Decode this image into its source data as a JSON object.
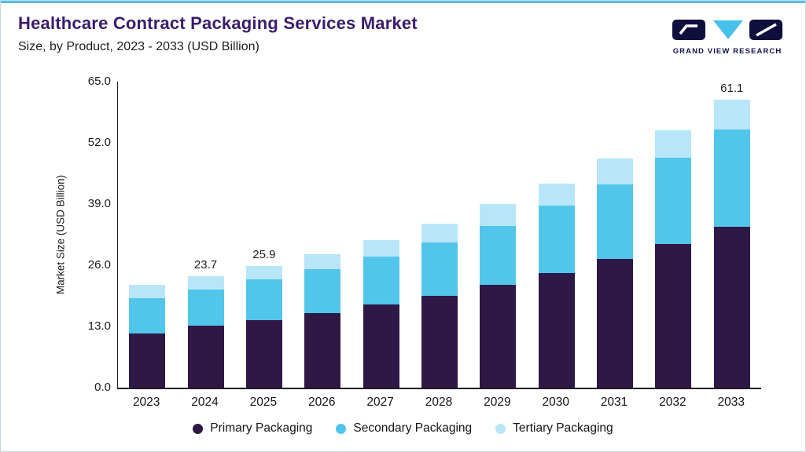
{
  "header": {
    "title": "Healthcare Contract Packaging Services Market",
    "subtitle": "Size, by Product, 2023 - 2033 (USD Billion)",
    "logo_text": "GRAND VIEW RESEARCH"
  },
  "colors": {
    "accent": "#55bfe8",
    "title": "#3a1c6b"
  },
  "chart_data": {
    "type": "bar",
    "stacked": true,
    "title": "Healthcare Contract Packaging Services Market Size, by Product, 2023 - 2033 (USD Billion)",
    "categories": [
      "2023",
      "2024",
      "2025",
      "2026",
      "2027",
      "2028",
      "2029",
      "2030",
      "2031",
      "2032",
      "2033"
    ],
    "series": [
      {
        "name": "Primary Packaging",
        "color": "#2d1846",
        "values": [
          11.5,
          13.1,
          14.3,
          15.9,
          17.6,
          19.5,
          21.9,
          24.4,
          27.3,
          30.5,
          34.1
        ]
      },
      {
        "name": "Secondary Packaging",
        "color": "#52c5eb",
        "values": [
          7.5,
          7.7,
          8.7,
          9.3,
          10.3,
          11.3,
          12.4,
          14.2,
          15.9,
          18.3,
          20.7
        ]
      },
      {
        "name": "Tertiary Packaging",
        "color": "#b8e6f8",
        "values": [
          2.9,
          2.9,
          2.9,
          3.2,
          3.5,
          4.1,
          4.7,
          4.8,
          5.5,
          5.9,
          6.3
        ]
      }
    ],
    "totals": [
      21.9,
      23.7,
      25.9,
      28.4,
      31.4,
      34.9,
      39.0,
      43.4,
      48.7,
      54.7,
      61.1
    ],
    "total_labels": [
      "",
      "23.7",
      "25.9",
      "",
      "",
      "",
      "",
      "",
      "",
      "",
      "61.1"
    ],
    "ylabel": "Market Size (USD Billion)",
    "xlabel": "",
    "ylim": [
      0,
      65
    ],
    "yticks": [
      "0.0",
      "13.0",
      "26.0",
      "39.0",
      "52.0",
      "65.0"
    ],
    "grid": false,
    "legend_position": "bottom"
  }
}
